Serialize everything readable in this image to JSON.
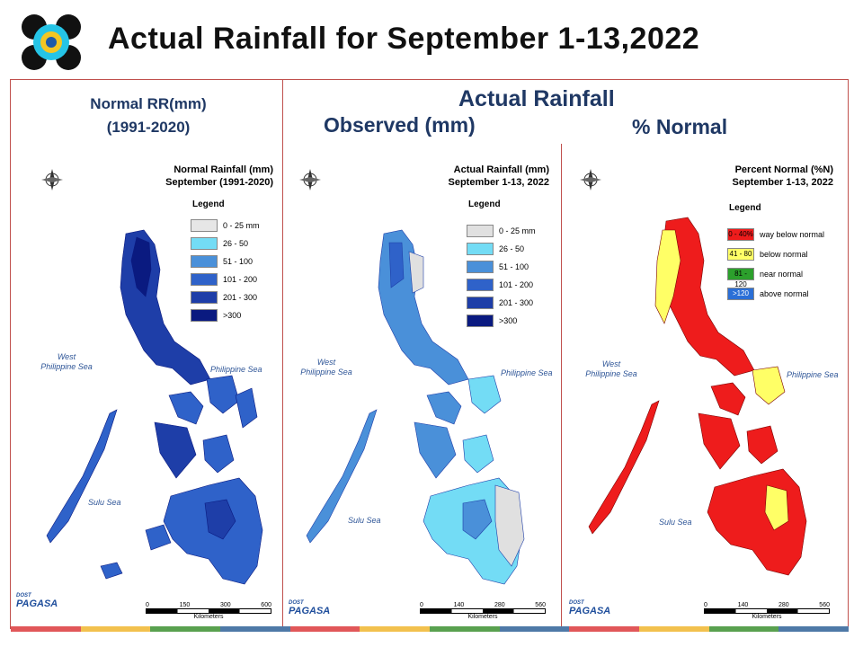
{
  "title": "Actual Rainfall for September 1-13,2022",
  "headers": {
    "normal": "Normal RR(mm)\n(1991-2020)",
    "normal_l1": "Normal RR(mm)",
    "normal_l2": "(1991-2020)",
    "actual": "Actual Rainfall",
    "observed": "Observed (mm)",
    "percent": "% Normal"
  },
  "panels": [
    {
      "title_l1": "Normal Rainfall (mm)",
      "title_l2": "September (1991-2020)",
      "legend_title": "Legend",
      "legend": [
        {
          "label": "0 - 25 mm",
          "color": "#e6e6e6"
        },
        {
          "label": "26 - 50",
          "color": "#73dcf5"
        },
        {
          "label": "51 - 100",
          "color": "#4a90d9"
        },
        {
          "label": "101 - 200",
          "color": "#2f62c9"
        },
        {
          "label": "201 - 300",
          "color": "#1e3ea8"
        },
        {
          "label": ">300",
          "color": "#0a1a80"
        }
      ],
      "seas": {
        "west_l1": "West",
        "west_l2": "Philippine Sea",
        "east": "Philippine Sea",
        "sulu": "Sulu Sea"
      },
      "scale": {
        "ticks": [
          "0",
          "150",
          "300",
          "600"
        ],
        "unit": "Kilometers"
      }
    },
    {
      "title_l1": "Actual Rainfall (mm)",
      "title_l2": "September 1-13, 2022",
      "legend_title": "Legend",
      "legend": [
        {
          "label": "0 - 25 mm",
          "color": "#e0e0e0"
        },
        {
          "label": "26 - 50",
          "color": "#73dcf5"
        },
        {
          "label": "51 - 100",
          "color": "#4a90d9"
        },
        {
          "label": "101 - 200",
          "color": "#2f62c9"
        },
        {
          "label": "201 - 300",
          "color": "#1e3ea8"
        },
        {
          "label": ">300",
          "color": "#0a1a80"
        }
      ],
      "seas": {
        "west_l1": "West",
        "west_l2": "Philippine Sea",
        "east": "Philippine Sea",
        "sulu": "Sulu Sea"
      },
      "scale": {
        "ticks": [
          "0",
          "140",
          "280",
          "560"
        ],
        "unit": "Kilometers"
      }
    },
    {
      "title_l1": "Percent Normal (%N)",
      "title_l2": "September 1-13, 2022",
      "legend_title": "Legend",
      "legend": [
        {
          "box": "0 - 40%",
          "label": "way below normal",
          "color": "#ee1c1c"
        },
        {
          "box": "41 - 80",
          "label": "below normal",
          "color": "#ffff66"
        },
        {
          "box": "81 - 120",
          "label": "near normal",
          "color": "#2ca02c"
        },
        {
          "box": ">120",
          "label": "above normal",
          "color": "#2b6fd6"
        }
      ],
      "seas": {
        "west_l1": "West",
        "west_l2": "Philippine Sea",
        "east": "Philippine Sea",
        "sulu": "Sulu Sea"
      },
      "scale": {
        "ticks": [
          "0",
          "140",
          "280",
          "560"
        ],
        "unit": "Kilometers"
      }
    }
  ],
  "footer": {
    "brand_small": "DOST",
    "brand": "PAGASA",
    "colors": [
      "#e15759",
      "#f2c14e",
      "#59a14f",
      "#4e79a7"
    ]
  },
  "compass": {
    "n": "N",
    "s": "S",
    "e": "E",
    "w": "W"
  }
}
